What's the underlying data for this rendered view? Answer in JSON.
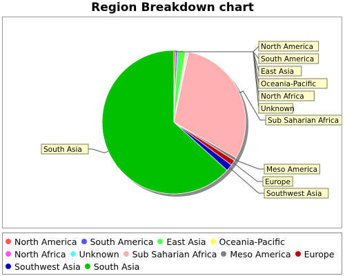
{
  "chart_data": {
    "type": "pie",
    "title": "Region Breakdown chart",
    "slices": [
      {
        "label": "North America",
        "value": 0.4,
        "color": "#ff5555"
      },
      {
        "label": "South America",
        "value": 0.4,
        "color": "#5555ff"
      },
      {
        "label": "East Asia",
        "value": 1.8,
        "color": "#55ff55"
      },
      {
        "label": "Oceania-Pacific",
        "value": 0.3,
        "color": "#ffff55"
      },
      {
        "label": "North Africa",
        "value": 0.2,
        "color": "#ff55ff"
      },
      {
        "label": "Unknown",
        "value": 0.2,
        "color": "#55ffff"
      },
      {
        "label": "Sub Saharian Africa",
        "value": 30.0,
        "color": "#ffafaf"
      },
      {
        "label": "Meso America",
        "value": 0.7,
        "color": "#808080"
      },
      {
        "label": "Europe",
        "value": 1.2,
        "color": "#c00000"
      },
      {
        "label": "Southwest Asia",
        "value": 1.5,
        "color": "#0000c0"
      },
      {
        "label": "South Asia",
        "value": 63.3,
        "color": "#00c000"
      }
    ],
    "legend_position": "bottom"
  }
}
